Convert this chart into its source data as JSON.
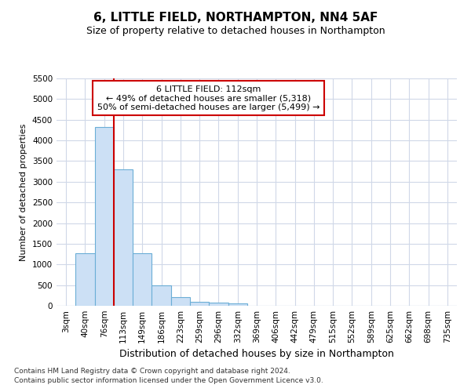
{
  "title": "6, LITTLE FIELD, NORTHAMPTON, NN4 5AF",
  "subtitle": "Size of property relative to detached houses in Northampton",
  "xlabel": "Distribution of detached houses by size in Northampton",
  "ylabel": "Number of detached properties",
  "footnote1": "Contains HM Land Registry data © Crown copyright and database right 2024.",
  "footnote2": "Contains public sector information licensed under the Open Government Licence v3.0.",
  "annotation_line1": "6 LITTLE FIELD: 112sqm",
  "annotation_line2": "← 49% of detached houses are smaller (5,318)",
  "annotation_line3": "50% of semi-detached houses are larger (5,499) →",
  "bar_color": "#cce0f5",
  "bar_edge_color": "#6baed6",
  "categories": [
    "3sqm",
    "40sqm",
    "76sqm",
    "113sqm",
    "149sqm",
    "186sqm",
    "223sqm",
    "259sqm",
    "296sqm",
    "332sqm",
    "369sqm",
    "406sqm",
    "442sqm",
    "479sqm",
    "515sqm",
    "552sqm",
    "589sqm",
    "625sqm",
    "662sqm",
    "698sqm",
    "735sqm"
  ],
  "values": [
    0,
    1270,
    4330,
    3300,
    1280,
    490,
    215,
    90,
    70,
    60,
    0,
    0,
    0,
    0,
    0,
    0,
    0,
    0,
    0,
    0,
    0
  ],
  "red_line_index": 2.5,
  "ylim": [
    0,
    5500
  ],
  "yticks": [
    0,
    500,
    1000,
    1500,
    2000,
    2500,
    3000,
    3500,
    4000,
    4500,
    5000,
    5500
  ],
  "background_color": "#ffffff",
  "plot_bg_color": "#ffffff",
  "grid_color": "#d0d8e8",
  "annotation_box_facecolor": "#ffffff",
  "annotation_box_edgecolor": "#cc0000",
  "red_line_color": "#cc0000",
  "title_fontsize": 11,
  "subtitle_fontsize": 9,
  "ylabel_fontsize": 8,
  "xlabel_fontsize": 9,
  "tick_fontsize": 7.5,
  "footnote_fontsize": 6.5,
  "annotation_fontsize": 8
}
